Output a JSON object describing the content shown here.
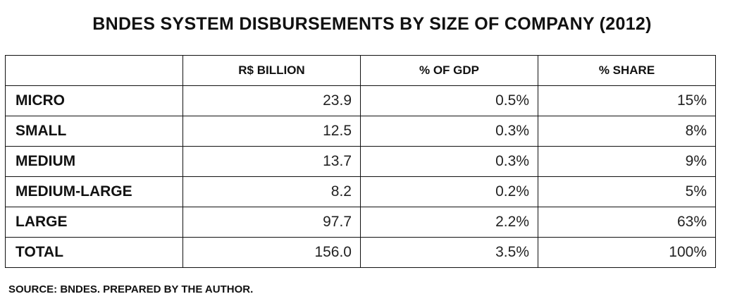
{
  "title": "BNDES SYSTEM DISBURSEMENTS BY SIZE OF COMPANY (2012)",
  "chart_data": {
    "type": "table",
    "columns": [
      "",
      "R$ BILLION",
      "% OF GDP",
      "% SHARE"
    ],
    "rows": [
      [
        "MICRO",
        "23.9",
        "0.5%",
        "15%"
      ],
      [
        "SMALL",
        "12.5",
        "0.3%",
        "8%"
      ],
      [
        "MEDIUM",
        "13.7",
        "0.3%",
        "9%"
      ],
      [
        "MEDIUM-LARGE",
        "8.2",
        "0.2%",
        "5%"
      ],
      [
        "LARGE",
        "97.7",
        "2.2%",
        "63%"
      ],
      [
        "TOTAL",
        "156.0",
        "3.5%",
        "100%"
      ]
    ]
  },
  "source": "SOURCE: BNDES. PREPARED BY THE AUTHOR."
}
